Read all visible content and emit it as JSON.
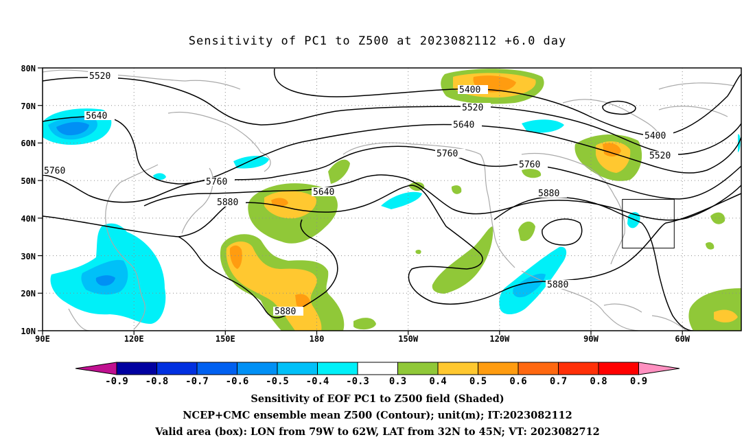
{
  "title": "Sensitivity of PC1 to Z500 at 2023082112 +6.0 day",
  "map": {
    "lat_labels": [
      "80N",
      "70N",
      "60N",
      "50N",
      "40N",
      "30N",
      "20N",
      "10N"
    ],
    "lon_labels": [
      "90E",
      "120E",
      "150E",
      "180",
      "150W",
      "120W",
      "90W",
      "60W"
    ],
    "lon_range": [
      "90E",
      "40W"
    ],
    "lat_range": [
      "10N",
      "80N"
    ],
    "contour_labels": [
      "5520",
      "5640",
      "5760",
      "5400",
      "5520",
      "5640",
      "5760",
      "5880",
      "5760",
      "5640",
      "5760",
      "5880",
      "5400",
      "5520",
      "5880",
      "5880"
    ],
    "valid_box": {
      "lon": [
        "79W",
        "62W"
      ],
      "lat": [
        "32N",
        "45N"
      ]
    },
    "colors": {
      "negative": [
        "#0000a0",
        "#0030e0",
        "#0060f0",
        "#0090f5",
        "#00c0f8",
        "#00f0f8"
      ],
      "positive": [
        "#90c838",
        "#ffc830",
        "#ff9c10",
        "#ff6810",
        "#ff3008",
        "#ff0000"
      ],
      "neutral": "#ffffff",
      "below": "#c01090",
      "above": "#ff90c0",
      "geography": "#a9a9a9"
    }
  },
  "colorbar": {
    "labels": [
      "-0.9",
      "-0.8",
      "-0.7",
      "-0.6",
      "-0.5",
      "-0.4",
      "-0.3",
      "0.3",
      "0.4",
      "0.5",
      "0.6",
      "0.7",
      "0.8",
      "0.9"
    ]
  },
  "captions": [
    "Sensitivity of EOF PC1 to Z500 field (Shaded)",
    "NCEP+CMC ensemble mean Z500 (Contour); unit(m); IT:2023082112",
    "Valid area (box): LON from 79W to 62W, LAT from 32N to 45N; VT: 2023082712"
  ]
}
